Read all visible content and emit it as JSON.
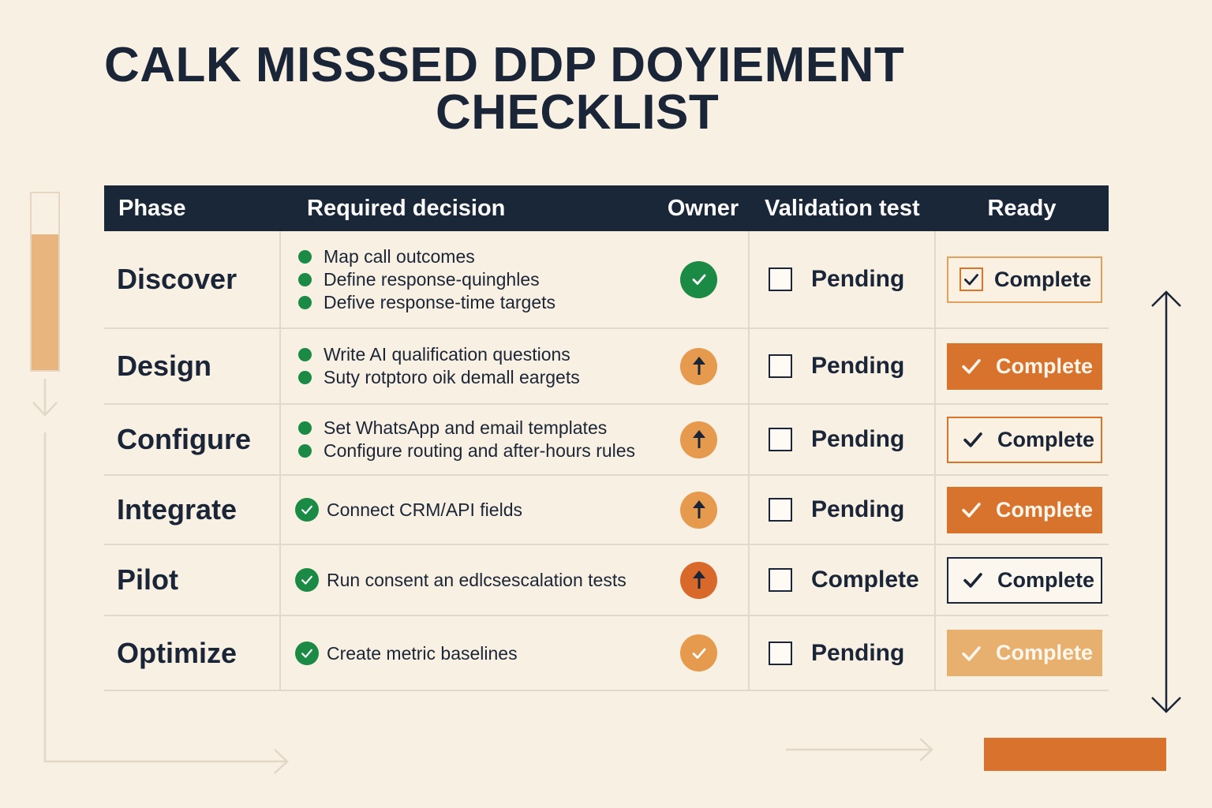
{
  "title": {
    "line1": "CALK MISSSED DDP DOYIEMENT",
    "line2": "CHECKLIST"
  },
  "colors": {
    "background": "#f8f0e3",
    "header": "#1a2739",
    "green": "#1b8a45",
    "orange": "#d8732d",
    "orange_light": "#e8b06f"
  },
  "progress": {
    "fill_fraction": 0.77
  },
  "table": {
    "headers": {
      "phase": "Phase",
      "decision": "Required decision",
      "owner": "Owner",
      "validation": "Validation test",
      "ready": "Ready"
    },
    "rows": [
      {
        "phase": "Discover",
        "decisions": [
          "Map call outcomes",
          "Define response-quinghles",
          "Defive response-time targets"
        ],
        "decision_marker": "dot",
        "owner_icon": "check-circle-icon",
        "validation": "Pending",
        "ready": "Complete",
        "ready_style": "outline-check"
      },
      {
        "phase": "Design",
        "decisions": [
          "Write AI qualification questions",
          "Suty rotptoro oik demall eargets"
        ],
        "decision_marker": "dot",
        "owner_icon": "arrow-up-circle-icon",
        "validation": "Pending",
        "ready": "Complete",
        "ready_style": "solid"
      },
      {
        "phase": "Configure",
        "decisions": [
          "Set WhatsApp and email templates",
          "Configure routing and after-hours rules"
        ],
        "decision_marker": "dot",
        "owner_icon": "arrow-up-circle-icon",
        "validation": "Pending",
        "ready": "Complete",
        "ready_style": "outline-orange"
      },
      {
        "phase": "Integrate",
        "decisions": [
          "Connect CRM/API fields"
        ],
        "decision_marker": "check",
        "owner_icon": "arrow-up-circle-icon",
        "validation": "Pending",
        "ready": "Complete",
        "ready_style": "solid"
      },
      {
        "phase": "Pilot",
        "decisions": [
          "Run consent an edlcsescalation tests"
        ],
        "decision_marker": "check",
        "owner_icon": "arrow-up-circle-icon",
        "validation": "Complete",
        "ready": "Complete",
        "ready_style": "outline-dark"
      },
      {
        "phase": "Optimize",
        "decisions": [
          "Create metric baselines"
        ],
        "decision_marker": "check",
        "owner_icon": "check-circle-icon",
        "validation": "Pending",
        "ready": "Complete",
        "ready_style": "soft"
      }
    ]
  }
}
